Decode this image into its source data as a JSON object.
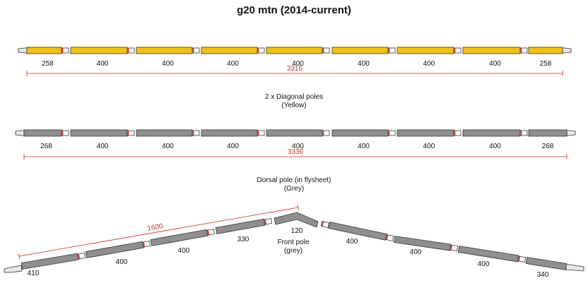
{
  "title": "g20 mtn (2014-current)",
  "colors": {
    "yellow": "#f4c20d",
    "grey": "#8f8f8f",
    "outline": "#333333",
    "ferrule": "#d0221b",
    "dimension": "#d0221b",
    "tip": "#e6e6e6"
  },
  "diagonal_poles": {
    "lengths": [
      "258",
      "400",
      "400",
      "400",
      "400",
      "400",
      "400",
      "400",
      "258"
    ],
    "total": "3316",
    "caption_line1": "2 x Diagonal poles",
    "caption_line2": "(Yellow)"
  },
  "dorsal_pole": {
    "lengths": [
      "268",
      "400",
      "400",
      "400",
      "400",
      "400",
      "400",
      "400",
      "268"
    ],
    "total": "3336",
    "caption_line1": "Dorsal pole (in flysheet)",
    "caption_line2": "(Grey)"
  },
  "front_pole": {
    "left_lengths": [
      "410",
      "400",
      "400",
      "330"
    ],
    "apex_length": "120",
    "right_lengths": [
      "400",
      "400",
      "400",
      "340"
    ],
    "dimension": "1600",
    "caption_line1": "Front pole",
    "caption_line2": "(grey)"
  }
}
